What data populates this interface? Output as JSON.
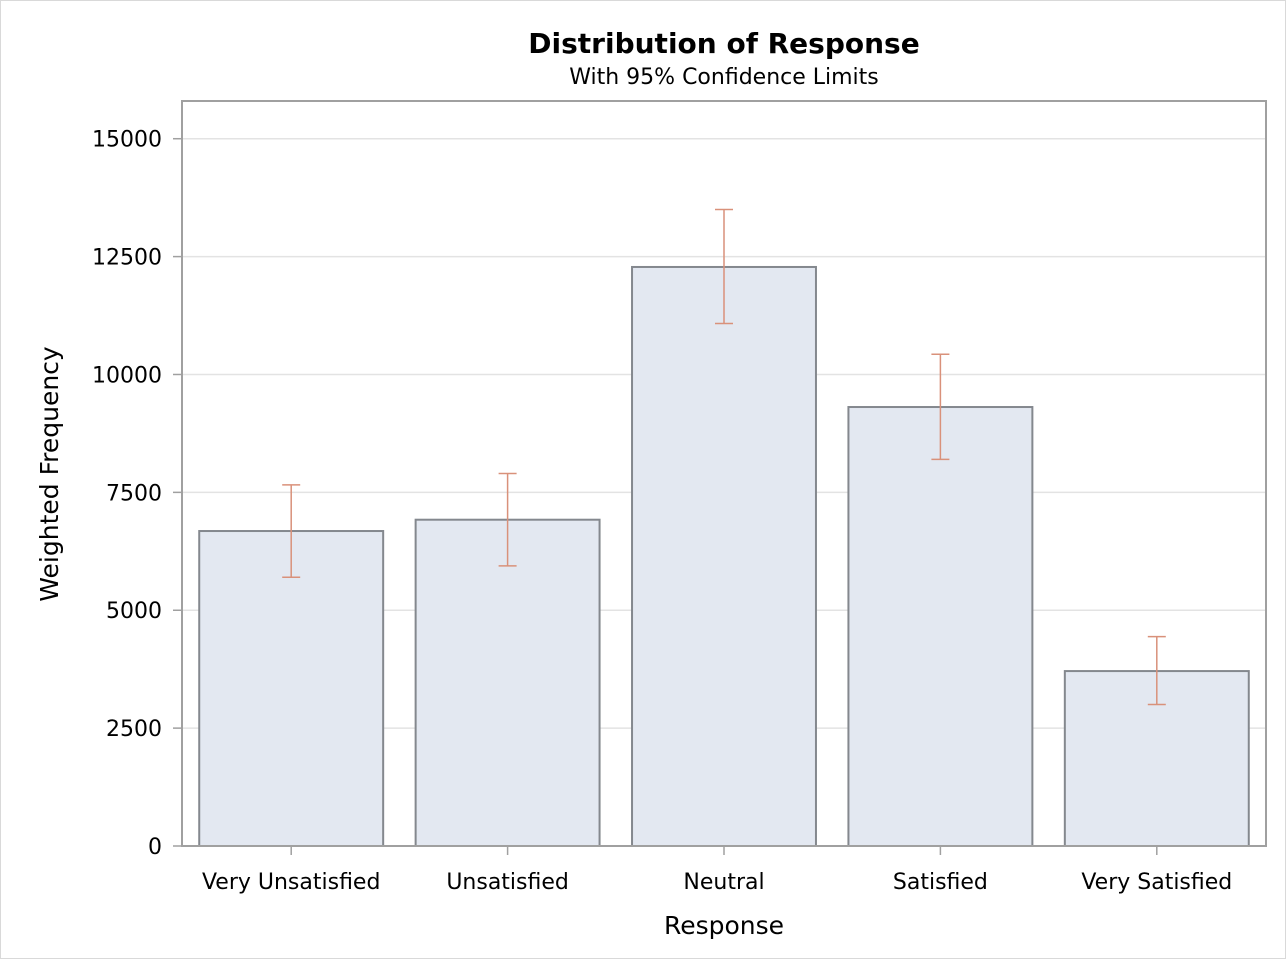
{
  "chart_data": {
    "type": "bar",
    "title": "Distribution of Response",
    "subtitle": "With 95% Confidence Limits",
    "xlabel": "Response",
    "ylabel": "Weighted Frequency",
    "categories": [
      "Very Unsatisfied",
      "Unsatisfied",
      "Neutral",
      "Satisfied",
      "Very Satisfied"
    ],
    "values": [
      6680,
      6920,
      12280,
      9310,
      3710
    ],
    "ci_lower": [
      5700,
      5940,
      11080,
      8200,
      3000
    ],
    "ci_upper": [
      7660,
      7900,
      13500,
      10430,
      4440
    ],
    "ylim": [
      0,
      15800
    ],
    "yticks": [
      0,
      2500,
      5000,
      7500,
      10000,
      12500,
      15000
    ],
    "ytick_labels": [
      "0",
      "2500",
      "5000",
      "7500",
      "10000",
      "12500",
      "15000"
    ],
    "grid": true,
    "legend": "none",
    "colors": {
      "bar_fill": "#e3e8f1",
      "bar_stroke": "#84888e",
      "error_bar": "#d9917a",
      "grid": "#e3e3e3",
      "axis": "#a0a0a0"
    }
  }
}
